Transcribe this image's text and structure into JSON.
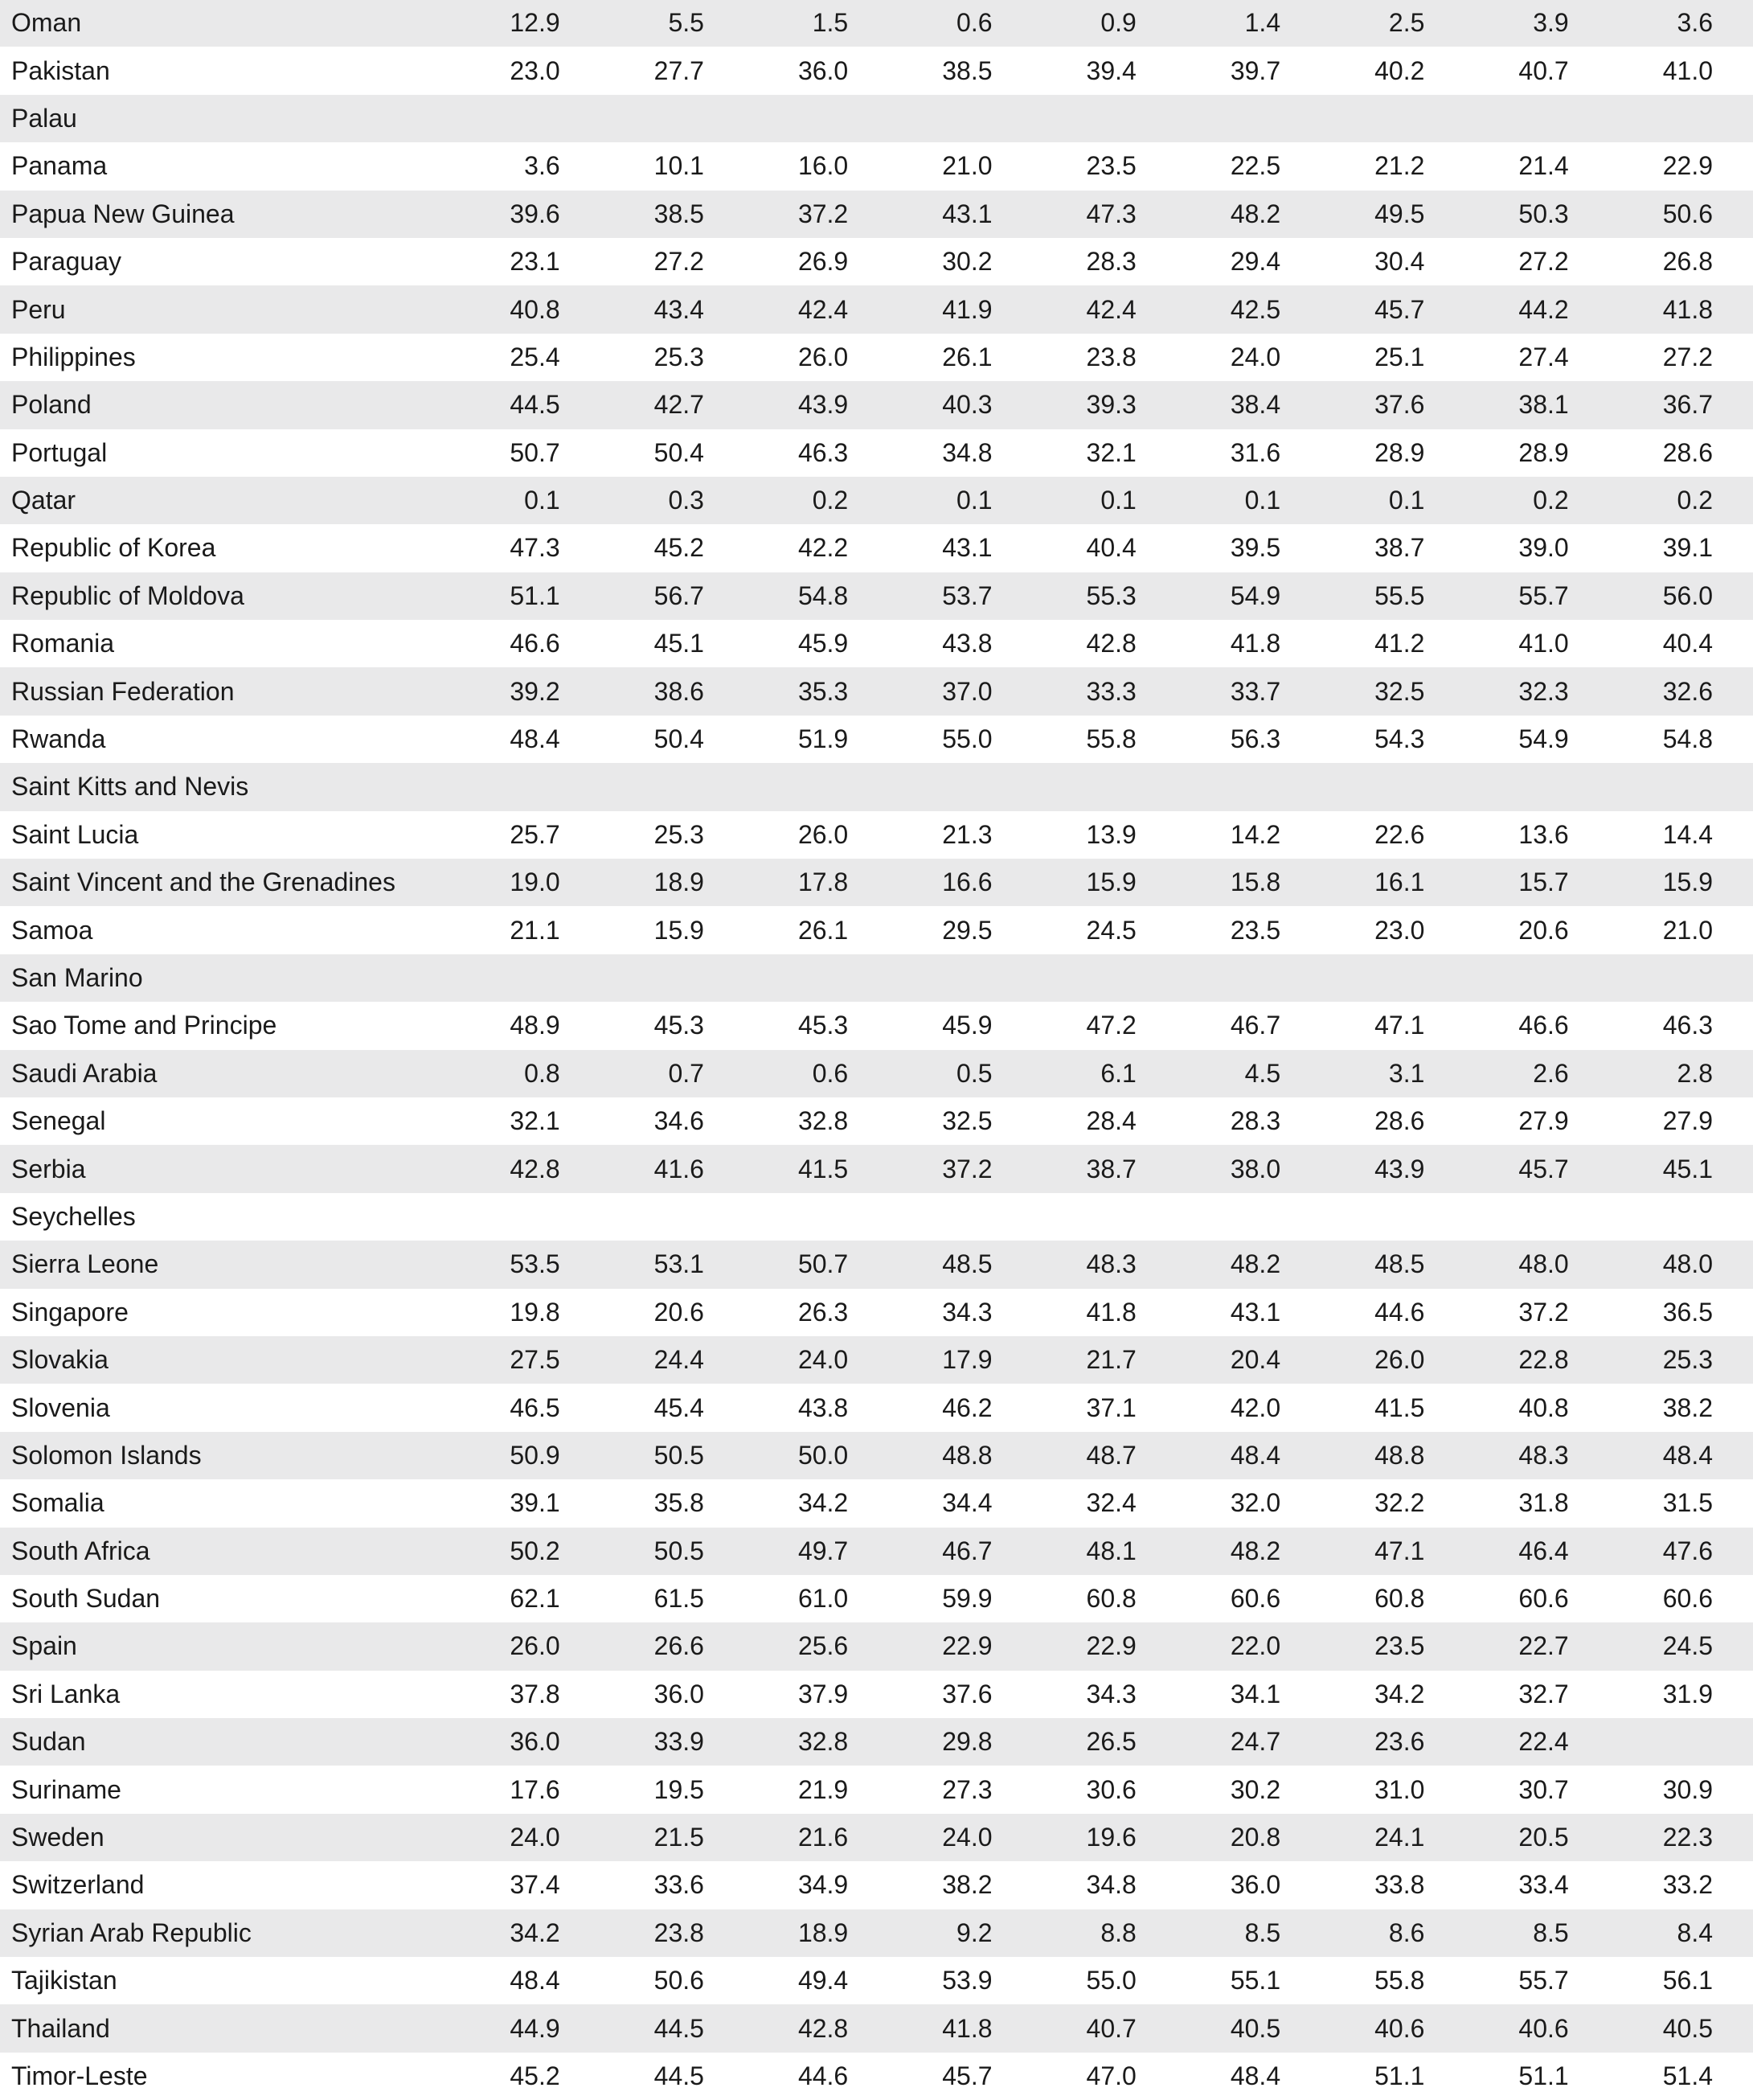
{
  "rows": [
    {
      "country": "Oman",
      "values": [
        "12.9",
        "5.5",
        "1.5",
        "0.6",
        "0.9",
        "1.4",
        "2.5",
        "3.9",
        "3.6"
      ]
    },
    {
      "country": "Pakistan",
      "values": [
        "23.0",
        "27.7",
        "36.0",
        "38.5",
        "39.4",
        "39.7",
        "40.2",
        "40.7",
        "41.0"
      ]
    },
    {
      "country": "Palau",
      "values": [
        "",
        "",
        "",
        "",
        "",
        "",
        "",
        "",
        ""
      ]
    },
    {
      "country": "Panama",
      "values": [
        "3.6",
        "10.1",
        "16.0",
        "21.0",
        "23.5",
        "22.5",
        "21.2",
        "21.4",
        "22.9"
      ]
    },
    {
      "country": "Papua New Guinea",
      "values": [
        "39.6",
        "38.5",
        "37.2",
        "43.1",
        "47.3",
        "48.2",
        "49.5",
        "50.3",
        "50.6"
      ]
    },
    {
      "country": "Paraguay",
      "values": [
        "23.1",
        "27.2",
        "26.9",
        "30.2",
        "28.3",
        "29.4",
        "30.4",
        "27.2",
        "26.8"
      ]
    },
    {
      "country": "Peru",
      "values": [
        "40.8",
        "43.4",
        "42.4",
        "41.9",
        "42.4",
        "42.5",
        "45.7",
        "44.2",
        "41.8"
      ]
    },
    {
      "country": "Philippines",
      "values": [
        "25.4",
        "25.3",
        "26.0",
        "26.1",
        "23.8",
        "24.0",
        "25.1",
        "27.4",
        "27.2"
      ]
    },
    {
      "country": "Poland",
      "values": [
        "44.5",
        "42.7",
        "43.9",
        "40.3",
        "39.3",
        "38.4",
        "37.6",
        "38.1",
        "36.7"
      ]
    },
    {
      "country": "Portugal",
      "values": [
        "50.7",
        "50.4",
        "46.3",
        "34.8",
        "32.1",
        "31.6",
        "28.9",
        "28.9",
        "28.6"
      ]
    },
    {
      "country": "Qatar",
      "values": [
        "0.1",
        "0.3",
        "0.2",
        "0.1",
        "0.1",
        "0.1",
        "0.1",
        "0.2",
        "0.2"
      ]
    },
    {
      "country": "Republic of Korea",
      "values": [
        "47.3",
        "45.2",
        "42.2",
        "43.1",
        "40.4",
        "39.5",
        "38.7",
        "39.0",
        "39.1"
      ]
    },
    {
      "country": "Republic of Moldova",
      "values": [
        "51.1",
        "56.7",
        "54.8",
        "53.7",
        "55.3",
        "54.9",
        "55.5",
        "55.7",
        "56.0"
      ]
    },
    {
      "country": "Romania",
      "values": [
        "46.6",
        "45.1",
        "45.9",
        "43.8",
        "42.8",
        "41.8",
        "41.2",
        "41.0",
        "40.4"
      ]
    },
    {
      "country": "Russian Federation",
      "values": [
        "39.2",
        "38.6",
        "35.3",
        "37.0",
        "33.3",
        "33.7",
        "32.5",
        "32.3",
        "32.6"
      ]
    },
    {
      "country": "Rwanda",
      "values": [
        "48.4",
        "50.4",
        "51.9",
        "55.0",
        "55.8",
        "56.3",
        "54.3",
        "54.9",
        "54.8"
      ]
    },
    {
      "country": "Saint Kitts and Nevis",
      "values": [
        "",
        "",
        "",
        "",
        "",
        "",
        "",
        "",
        ""
      ]
    },
    {
      "country": "Saint Lucia",
      "values": [
        "25.7",
        "25.3",
        "26.0",
        "21.3",
        "13.9",
        "14.2",
        "22.6",
        "13.6",
        "14.4"
      ]
    },
    {
      "country": "Saint Vincent and the Grenadines",
      "values": [
        "19.0",
        "18.9",
        "17.8",
        "16.6",
        "15.9",
        "15.8",
        "16.1",
        "15.7",
        "15.9"
      ]
    },
    {
      "country": "Samoa",
      "values": [
        "21.1",
        "15.9",
        "26.1",
        "29.5",
        "24.5",
        "23.5",
        "23.0",
        "20.6",
        "21.0"
      ]
    },
    {
      "country": "San Marino",
      "values": [
        "",
        "",
        "",
        "",
        "",
        "",
        "",
        "",
        ""
      ]
    },
    {
      "country": "Sao Tome and Principe",
      "values": [
        "48.9",
        "45.3",
        "45.3",
        "45.9",
        "47.2",
        "46.7",
        "47.1",
        "46.6",
        "46.3"
      ]
    },
    {
      "country": "Saudi Arabia",
      "values": [
        "0.8",
        "0.7",
        "0.6",
        "0.5",
        "6.1",
        "4.5",
        "3.1",
        "2.6",
        "2.8"
      ]
    },
    {
      "country": "Senegal",
      "values": [
        "32.1",
        "34.6",
        "32.8",
        "32.5",
        "28.4",
        "28.3",
        "28.6",
        "27.9",
        "27.9"
      ]
    },
    {
      "country": "Serbia",
      "values": [
        "42.8",
        "41.6",
        "41.5",
        "37.2",
        "38.7",
        "38.0",
        "43.9",
        "45.7",
        "45.1"
      ]
    },
    {
      "country": "Seychelles",
      "values": [
        "",
        "",
        "",
        "",
        "",
        "",
        "",
        "",
        ""
      ]
    },
    {
      "country": "Sierra Leone",
      "values": [
        "53.5",
        "53.1",
        "50.7",
        "48.5",
        "48.3",
        "48.2",
        "48.5",
        "48.0",
        "48.0"
      ]
    },
    {
      "country": "Singapore",
      "values": [
        "19.8",
        "20.6",
        "26.3",
        "34.3",
        "41.8",
        "43.1",
        "44.6",
        "37.2",
        "36.5"
      ]
    },
    {
      "country": "Slovakia",
      "values": [
        "27.5",
        "24.4",
        "24.0",
        "17.9",
        "21.7",
        "20.4",
        "26.0",
        "22.8",
        "25.3"
      ]
    },
    {
      "country": "Slovenia",
      "values": [
        "46.5",
        "45.4",
        "43.8",
        "46.2",
        "37.1",
        "42.0",
        "41.5",
        "40.8",
        "38.2"
      ]
    },
    {
      "country": "Solomon Islands",
      "values": [
        "50.9",
        "50.5",
        "50.0",
        "48.8",
        "48.7",
        "48.4",
        "48.8",
        "48.3",
        "48.4"
      ]
    },
    {
      "country": "Somalia",
      "values": [
        "39.1",
        "35.8",
        "34.2",
        "34.4",
        "32.4",
        "32.0",
        "32.2",
        "31.8",
        "31.5"
      ]
    },
    {
      "country": "South Africa",
      "values": [
        "50.2",
        "50.5",
        "49.7",
        "46.7",
        "48.1",
        "48.2",
        "47.1",
        "46.4",
        "47.6"
      ]
    },
    {
      "country": "South Sudan",
      "values": [
        "62.1",
        "61.5",
        "61.0",
        "59.9",
        "60.8",
        "60.6",
        "60.8",
        "60.6",
        "60.6"
      ]
    },
    {
      "country": "Spain",
      "values": [
        "26.0",
        "26.6",
        "25.6",
        "22.9",
        "22.9",
        "22.0",
        "23.5",
        "22.7",
        "24.5"
      ]
    },
    {
      "country": "Sri Lanka",
      "values": [
        "37.8",
        "36.0",
        "37.9",
        "37.6",
        "34.3",
        "34.1",
        "34.2",
        "32.7",
        "31.9"
      ]
    },
    {
      "country": "Sudan",
      "values": [
        "36.0",
        "33.9",
        "32.8",
        "29.8",
        "26.5",
        "24.7",
        "23.6",
        "22.4",
        ""
      ]
    },
    {
      "country": "Suriname",
      "values": [
        "17.6",
        "19.5",
        "21.9",
        "27.3",
        "30.6",
        "30.2",
        "31.0",
        "30.7",
        "30.9"
      ]
    },
    {
      "country": "Sweden",
      "values": [
        "24.0",
        "21.5",
        "21.6",
        "24.0",
        "19.6",
        "20.8",
        "24.1",
        "20.5",
        "22.3"
      ]
    },
    {
      "country": "Switzerland",
      "values": [
        "37.4",
        "33.6",
        "34.9",
        "38.2",
        "34.8",
        "36.0",
        "33.8",
        "33.4",
        "33.2"
      ]
    },
    {
      "country": "Syrian Arab Republic",
      "values": [
        "34.2",
        "23.8",
        "18.9",
        "9.2",
        "8.8",
        "8.5",
        "8.6",
        "8.5",
        "8.4"
      ]
    },
    {
      "country": "Tajikistan",
      "values": [
        "48.4",
        "50.6",
        "49.4",
        "53.9",
        "55.0",
        "55.1",
        "55.8",
        "55.7",
        "56.1"
      ]
    },
    {
      "country": "Thailand",
      "values": [
        "44.9",
        "44.5",
        "42.8",
        "41.8",
        "40.7",
        "40.5",
        "40.6",
        "40.6",
        "40.5"
      ]
    },
    {
      "country": "Timor-Leste",
      "values": [
        "45.2",
        "44.5",
        "44.6",
        "45.7",
        "47.0",
        "48.4",
        "51.1",
        "51.1",
        "51.4"
      ]
    }
  ]
}
